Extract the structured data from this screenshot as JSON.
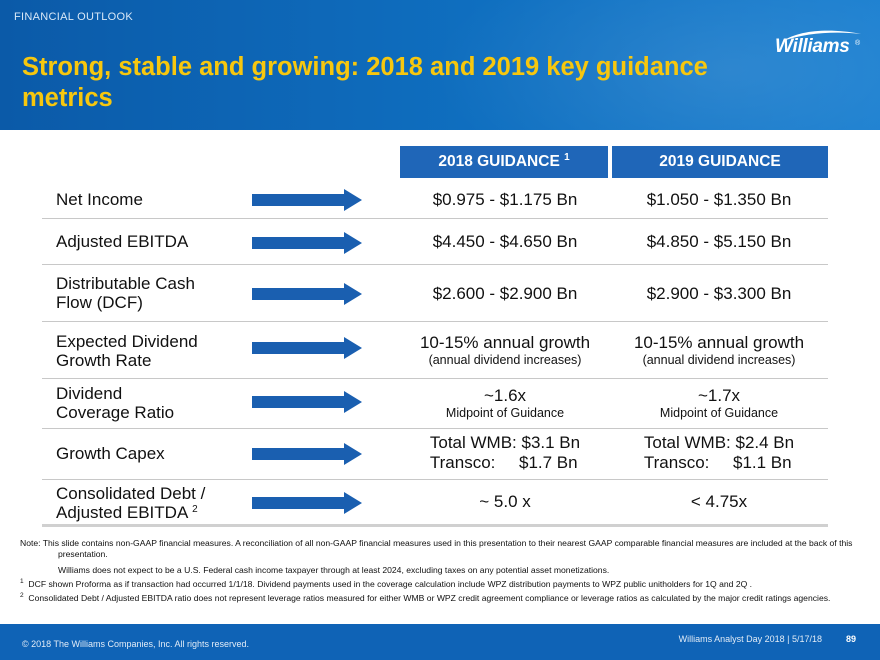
{
  "header": {
    "section": "FINANCIAL OUTLOOK",
    "title": "Strong, stable and growing: 2018 and 2019 key guidance metrics",
    "logo_text": "Williams",
    "logo_reg": "®"
  },
  "table": {
    "columns": [
      {
        "label": "2018 GUIDANCE",
        "footnote": "1"
      },
      {
        "label": "2019 GUIDANCE",
        "footnote": ""
      }
    ],
    "rows": [
      {
        "label": "Net Income",
        "y2018": "$0.975 - $1.175 Bn",
        "y2019": "$1.050 - $1.350 Bn"
      },
      {
        "label": "Adjusted EBITDA",
        "y2018": "$4.450 - $4.650 Bn",
        "y2019": "$4.850 - $5.150 Bn"
      },
      {
        "label_line1": "Distributable Cash",
        "label_line2": "Flow (DCF)",
        "y2018": "$2.600 - $2.900 Bn",
        "y2019": "$2.900 - $3.300 Bn"
      },
      {
        "label_line1": "Expected Dividend",
        "label_line2": "Growth Rate",
        "y2018": "10-15% annual growth",
        "y2018_sub": "(annual dividend increases)",
        "y2019": "10-15% annual growth",
        "y2019_sub": "(annual dividend increases)"
      },
      {
        "label_line1": "Dividend",
        "label_line2": "Coverage Ratio",
        "y2018": "~1.6x",
        "y2018_sub": "Midpoint of Guidance",
        "y2019": "~1.7x",
        "y2019_sub": "Midpoint of Guidance"
      },
      {
        "label": "Growth Capex",
        "y2018_line1": "Total WMB: $3.1 Bn",
        "y2018_line2": "Transco:     $1.7 Bn",
        "y2019_line1": "Total WMB: $2.4 Bn",
        "y2019_line2": "Transco:     $1.1 Bn"
      },
      {
        "label_line1": "Consolidated Debt /",
        "label_line2": "Adjusted EBITDA",
        "label_footnote": "2",
        "y2018": "~ 5.0 x",
        "y2019": "< 4.75x"
      }
    ]
  },
  "notes": {
    "note1": "Note: This slide contains non-GAAP financial measures. A reconciliation of all non-GAAP financial measures used in this presentation to their nearest GAAP comparable financial measures are included at the back of this presentation.",
    "note2": "Williams does not expect to be a U.S. Federal cash income taxpayer through at least 2024, excluding taxes on any potential asset monetizations.",
    "fn1_mark": "1",
    "fn1": "DCF shown Proforma as if transaction had occurred 1/1/18.   Dividend payments used in the coverage calculation include WPZ distribution payments to WPZ public unitholders for 1Q and 2Q .",
    "fn2_mark": "2",
    "fn2": "Consolidated Debt / Adjusted EBITDA ratio does not represent leverage ratios measured for either WMB or WPZ credit agreement compliance or leverage ratios as calculated by the major credit ratings agencies."
  },
  "footer": {
    "copyright": "© 2018 The Williams Companies, Inc. All rights reserved.",
    "event": "Williams Analyst Day 2018  |  5/17/18",
    "page": "89"
  },
  "colors": {
    "header_blue": "#0f6fc0",
    "title_yellow": "#f7c70e",
    "column_header_blue": "#1f66b8",
    "arrow_blue": "#1a5fb0"
  }
}
